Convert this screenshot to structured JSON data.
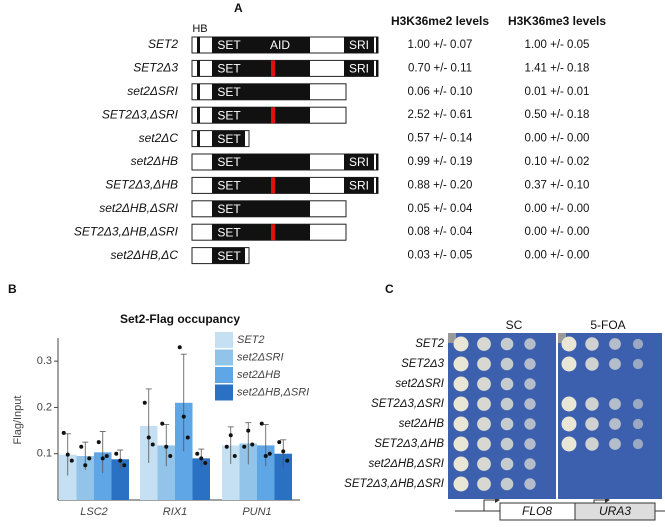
{
  "panel_a": {
    "label": "A",
    "hb_label": "HB",
    "headers": [
      "H3K36me2 levels",
      "H3K36me3 levels"
    ],
    "domains": {
      "set": "SET",
      "aid": "AID",
      "sri": "SRI"
    },
    "rows": [
      {
        "strain": "SET2",
        "me2": "1.00 +/- 0.07",
        "me3": "1.00 +/- 0.05"
      },
      {
        "strain": "SET2Δ3",
        "me2": "0.70 +/- 0.11",
        "me3": "1.41 +/- 0.18"
      },
      {
        "strain": "set2ΔSRI",
        "me2": "0.06 +/- 0.10",
        "me3": "0.01 +/- 0.01"
      },
      {
        "strain": "SET2Δ3,ΔSRI",
        "me2": "2.52 +/- 0.61",
        "me3": "0.50 +/- 0.18"
      },
      {
        "strain": "set2ΔC",
        "me2": "0.57 +/- 0.14",
        "me3": "0.00 +/- 0.00"
      },
      {
        "strain": "set2ΔHB",
        "me2": "0.99 +/- 0.19",
        "me3": "0.10 +/- 0.02"
      },
      {
        "strain": "SET2Δ3,ΔHB",
        "me2": "0.88 +/- 0.20",
        "me3": "0.37 +/- 0.10"
      },
      {
        "strain": "set2ΔHB,ΔSRI",
        "me2": "0.05 +/- 0.04",
        "me3": "0.00 +/- 0.00"
      },
      {
        "strain": "SET2Δ3,ΔHB,ΔSRI",
        "me2": "0.08 +/- 0.04",
        "me3": "0.00 +/- 0.00"
      },
      {
        "strain": "set2ΔHB,ΔC",
        "me2": "0.03 +/- 0.05",
        "me3": "0.00 +/- 0.00"
      }
    ]
  },
  "chart_data": {
    "type": "bar",
    "label": "B",
    "title": "Set2-Flag occupancy",
    "y_label": "Flag/Input",
    "categories": [
      "LSC2",
      "RIX1",
      "PUN1"
    ],
    "ylim": [
      0,
      0.35
    ],
    "yticks": [
      0.1,
      0.2,
      0.3
    ],
    "series": [
      {
        "name": "SET2",
        "color": "#c5dff3",
        "values": [
          0.098,
          0.16,
          0.118
        ],
        "errors": [
          0.045,
          0.08,
          0.04
        ],
        "points": [
          [
            0.145,
            0.098,
            0.085
          ],
          [
            0.21,
            0.135,
            0.12
          ],
          [
            0.115,
            0.14,
            0.095
          ]
        ]
      },
      {
        "name": "set2ΔSRI",
        "color": "#92c4ea",
        "values": [
          0.095,
          0.118,
          0.122
        ],
        "errors": [
          0.03,
          0.045,
          0.045
        ],
        "points": [
          [
            0.115,
            0.075,
            0.09
          ],
          [
            0.165,
            0.115,
            0.095
          ],
          [
            0.115,
            0.15,
            0.12
          ]
        ]
      },
      {
        "name": "set2ΔHB",
        "color": "#5fa6e6",
        "values": [
          0.103,
          0.21,
          0.118
        ],
        "errors": [
          0.045,
          0.105,
          0.045
        ],
        "points": [
          [
            0.125,
            0.09,
            0.095
          ],
          [
            0.33,
            0.18,
            0.135
          ],
          [
            0.165,
            0.095,
            0.1
          ]
        ]
      },
      {
        "name": "set2ΔHB,ΔSRI",
        "color": "#2a71c4",
        "values": [
          0.088,
          0.09,
          0.1
        ],
        "errors": [
          0.02,
          0.02,
          0.03
        ],
        "points": [
          [
            0.1,
            0.085,
            0.075
          ],
          [
            0.1,
            0.09,
            0.08
          ],
          [
            0.125,
            0.105,
            0.085
          ]
        ]
      }
    ]
  },
  "panel_c": {
    "label": "C",
    "media": [
      "SC",
      "5-FOA"
    ],
    "strains": [
      "SET2",
      "SET2Δ3",
      "set2ΔSRI",
      "SET2Δ3,ΔSRI",
      "set2ΔHB",
      "SET2Δ3,ΔHB",
      "set2ΔHB,ΔSRI",
      "SET2Δ3,ΔHB,ΔSRI"
    ],
    "genes": [
      "FLO8",
      "URA3"
    ]
  }
}
